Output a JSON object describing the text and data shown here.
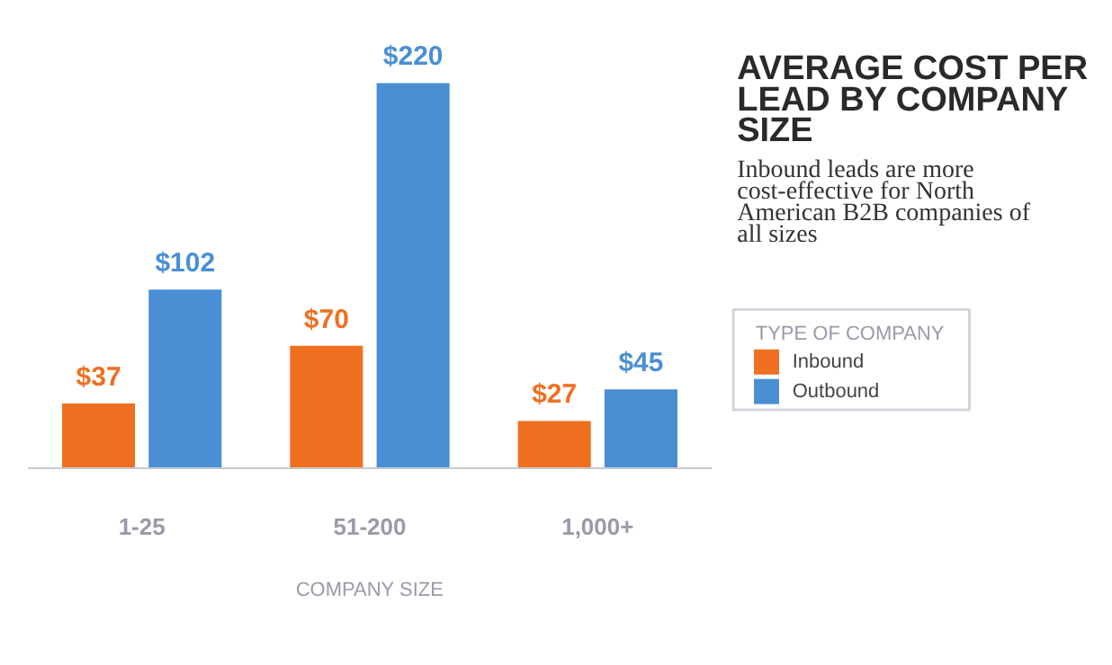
{
  "chart_data": {
    "type": "bar",
    "title": "AVERAGE COST PER LEAD BY COMPANY SIZE",
    "subtitle": "Inbound leads are more cost-effective for North American B2B companies of all sizes",
    "xlabel": "COMPANY SIZE",
    "legend_title": "TYPE OF COMPANY",
    "legend": "right",
    "categories": [
      "1-25",
      "51-200",
      "1,000+"
    ],
    "series": [
      {
        "name": "Inbound",
        "color": "#f07021",
        "values": [
          37,
          70,
          27
        ],
        "value_labels": [
          "$37",
          "$70",
          "$27"
        ]
      },
      {
        "name": "Outbound",
        "color": "#4a8fd4",
        "values": [
          102,
          220,
          45
        ],
        "value_labels": [
          "$102",
          "$220",
          "$45"
        ]
      }
    ]
  }
}
